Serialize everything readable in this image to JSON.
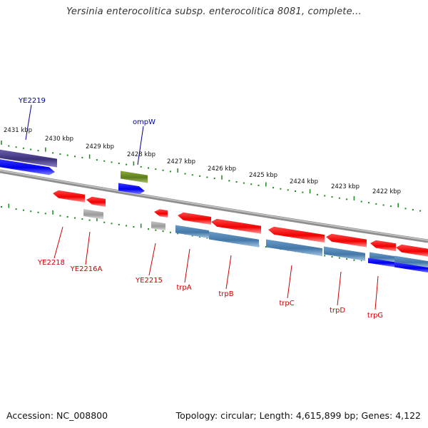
{
  "title": "Yersinia enterocolitica subsp. enterocolitica 8081, complete...",
  "footer": {
    "accession": "Accession: NC_008800",
    "topology": "Topology: circular; Length: 4,615,899 bp; Genes: 4,122"
  },
  "colors": {
    "backbone": "#8e8e8e",
    "tick_green": "#1a8a1a",
    "gene_red": "#ff0000",
    "gene_blue": "#0000ff",
    "gene_steel": "#4682b4",
    "gene_gray": "#a9a9a9",
    "gene_olive": "#6b8e23",
    "gene_darkslate": "#483d8b",
    "label_red": "#cc0000",
    "label_blue": "#000099"
  },
  "scale_labels": [
    "2431 kbp",
    "2430 kbp",
    "2429 kbp",
    "2428 kbp",
    "2427 kbp",
    "2426 kbp",
    "2425 kbp",
    "2424 kbp",
    "2423 kbp",
    "2422 kbp"
  ],
  "gene_labels": [
    {
      "text": "YE2219",
      "color": "label_blue"
    },
    {
      "text": "ompW",
      "color": "label_blue"
    },
    {
      "text": "YE2218",
      "color": "label_red"
    },
    {
      "text": "YE2216A",
      "color": "label_red"
    },
    {
      "text": "YE2215",
      "color": "label_red"
    },
    {
      "text": "trpA",
      "color": "label_red"
    },
    {
      "text": "trpB",
      "color": "label_red"
    },
    {
      "text": "trpC",
      "color": "label_red"
    },
    {
      "text": "trpD",
      "color": "label_red"
    },
    {
      "text": "trpG",
      "color": "label_red"
    }
  ]
}
